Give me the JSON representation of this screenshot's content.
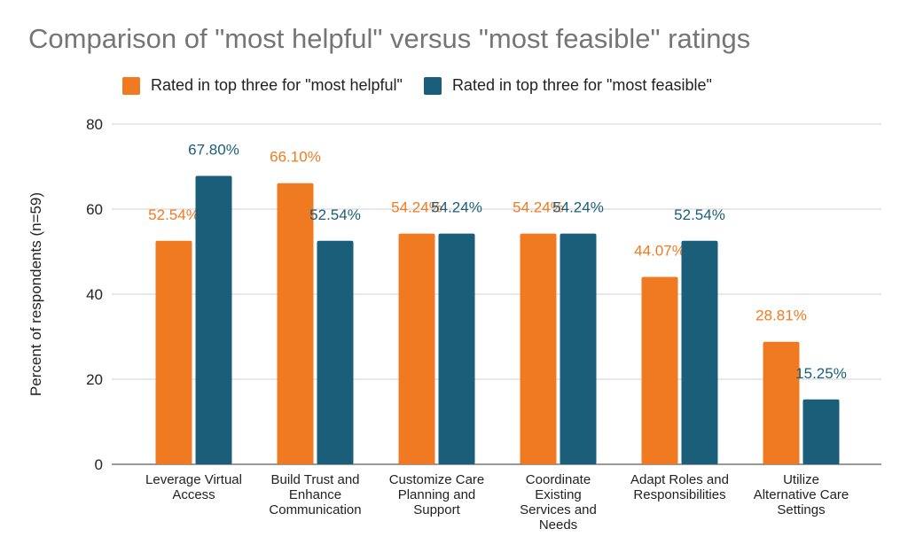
{
  "chart_data": {
    "type": "bar",
    "title": "Comparison of \"most helpful\" versus \"most feasible\" ratings",
    "xlabel": "",
    "ylabel": "Percent of respondents (n=59)",
    "ylim": [
      0,
      80
    ],
    "yticks": [
      0,
      20,
      40,
      60,
      80
    ],
    "grid": true,
    "legend_position": "top",
    "categories": [
      [
        "Leverage Virtual",
        "Access"
      ],
      [
        "Build Trust and",
        "Enhance",
        "Communication"
      ],
      [
        "Customize Care",
        "Planning and",
        "Support"
      ],
      [
        "Coordinate",
        "Existing",
        "Services and",
        "Needs"
      ],
      [
        "Adapt Roles and",
        "Responsibilities"
      ],
      [
        "Utilize",
        "Alternative Care",
        "Settings"
      ]
    ],
    "series": [
      {
        "name": "Rated in top three for \"most helpful\"",
        "color": "#f07a22",
        "values": [
          52.54,
          66.1,
          54.24,
          54.24,
          44.07,
          28.81
        ],
        "labels": [
          "52.54%",
          "66.10%",
          "54.24%",
          "54.24%",
          "44.07%",
          "28.81%"
        ]
      },
      {
        "name": "Rated in top three for \"most feasible\"",
        "color": "#1a5e7a",
        "values": [
          67.8,
          52.54,
          54.24,
          54.24,
          52.54,
          15.25
        ],
        "labels": [
          "67.80%",
          "52.54%",
          "54.24%",
          "54.24%",
          "52.54%",
          "15.25%"
        ]
      }
    ]
  }
}
